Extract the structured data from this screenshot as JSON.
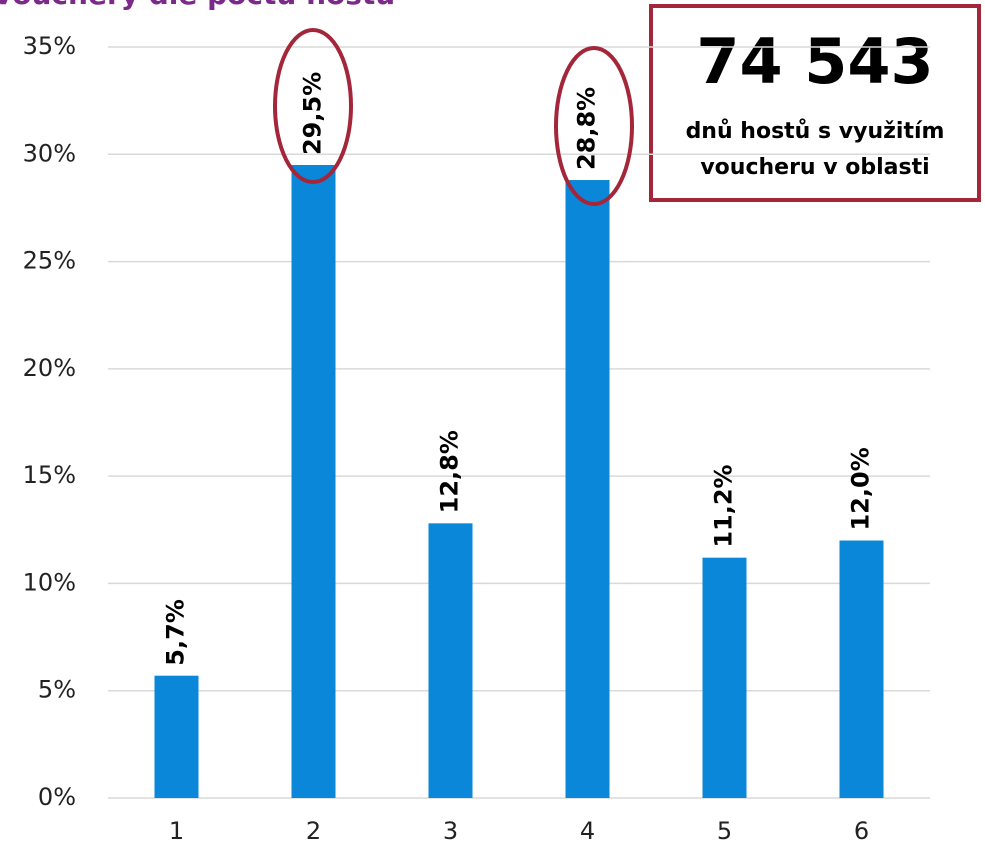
{
  "chart_data": {
    "type": "bar",
    "title": "vouchery dle počtu hostů",
    "categories": [
      "1",
      "2",
      "3",
      "4",
      "5",
      "6"
    ],
    "values": [
      5.7,
      29.5,
      12.8,
      28.8,
      11.2,
      12.0
    ],
    "value_labels": [
      "5,7%",
      "29,5%",
      "12,8%",
      "28,8%",
      "11,2%",
      "12,0%"
    ],
    "color": "#0a87d8",
    "ylim": [
      0,
      35
    ],
    "yticks": [
      {
        "value": 0,
        "label": "0%"
      },
      {
        "value": 5,
        "label": "5%"
      },
      {
        "value": 10,
        "label": "10%"
      },
      {
        "value": 15,
        "label": "15%"
      },
      {
        "value": 20,
        "label": "20%"
      },
      {
        "value": 25,
        "label": "25%"
      },
      {
        "value": 30,
        "label": "30%"
      },
      {
        "value": 35,
        "label": "35%"
      }
    ],
    "grid": true,
    "annotation_value": "74 543",
    "annotation_lines": [
      "dnů hostů s využitím",
      "voucheru v oblasti"
    ]
  }
}
